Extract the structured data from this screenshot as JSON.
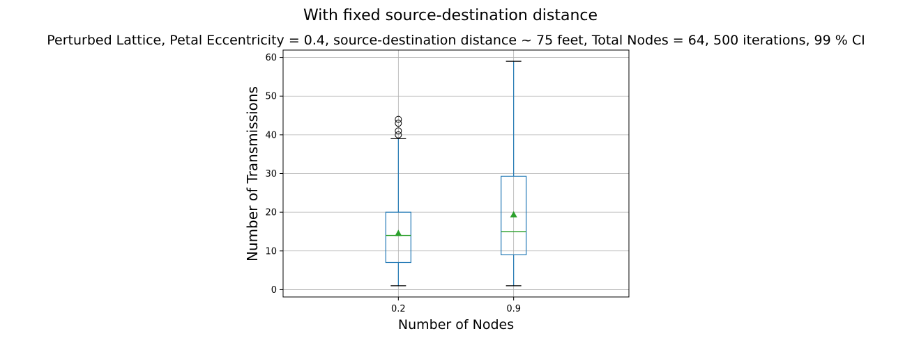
{
  "chart_data": {
    "type": "box",
    "suptitle": "With fixed source-destination distance",
    "title": "Perturbed Lattice, Petal Eccentricity = 0.4, source-destination distance ~ 75 feet, Total Nodes = 64, 500 iterations, 99 % CI",
    "xlabel": "Number of Nodes",
    "ylabel": "Number of Transmissions",
    "categories": [
      "0.2",
      "0.9"
    ],
    "ylim": [
      -1.9,
      61.9
    ],
    "yticks": [
      0,
      10,
      20,
      30,
      40,
      50,
      60
    ],
    "grid": true,
    "boxes": [
      {
        "category": "0.2",
        "whisker_low": 1,
        "q1": 7,
        "median": 14,
        "q3": 20,
        "whisker_high": 39,
        "mean": 14.6,
        "outliers": [
          40,
          41,
          43,
          44
        ]
      },
      {
        "category": "0.9",
        "whisker_low": 1,
        "q1": 9,
        "median": 15,
        "q3": 29.3,
        "whisker_high": 59,
        "mean": 19.4,
        "outliers": []
      }
    ],
    "colors": {
      "box": "#1f77b4",
      "median": "#2ca02c",
      "mean_marker": "#2ca02c",
      "whisker_cap": "#000000",
      "grid": "#b0b0b0"
    }
  }
}
